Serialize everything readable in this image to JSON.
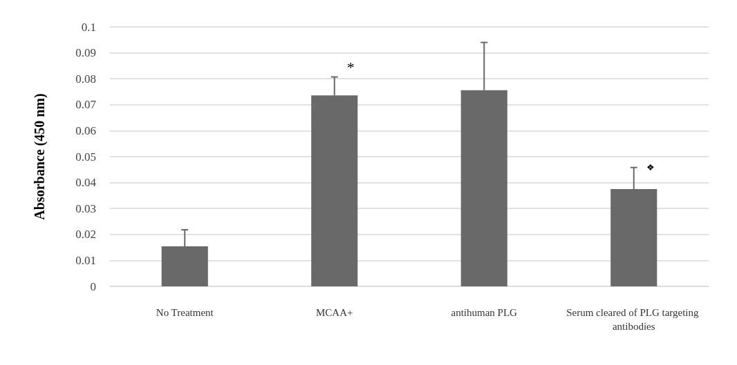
{
  "chart_data": {
    "type": "bar",
    "ylabel": "Absorbance (450 nm)",
    "categories": [
      "No Treatment",
      "MCAA+",
      "antihuman PLG",
      "Serum cleared of PLG targeting antibodies"
    ],
    "values": [
      0.0154,
      0.0736,
      0.0756,
      0.0375
    ],
    "errors": [
      [
        0.0154,
        0.0218
      ],
      [
        0.0736,
        0.0807
      ],
      [
        0.0756,
        0.094
      ],
      [
        0.0375,
        0.0458
      ]
    ],
    "color": "#696969",
    "ylim": [
      0,
      0.1
    ],
    "yticks": [
      0,
      0.01,
      0.02,
      0.03,
      0.04,
      0.05,
      0.06,
      0.07,
      0.08,
      0.09,
      0.1
    ],
    "grid": "y",
    "annotations": [
      "*",
      "❖"
    ]
  }
}
